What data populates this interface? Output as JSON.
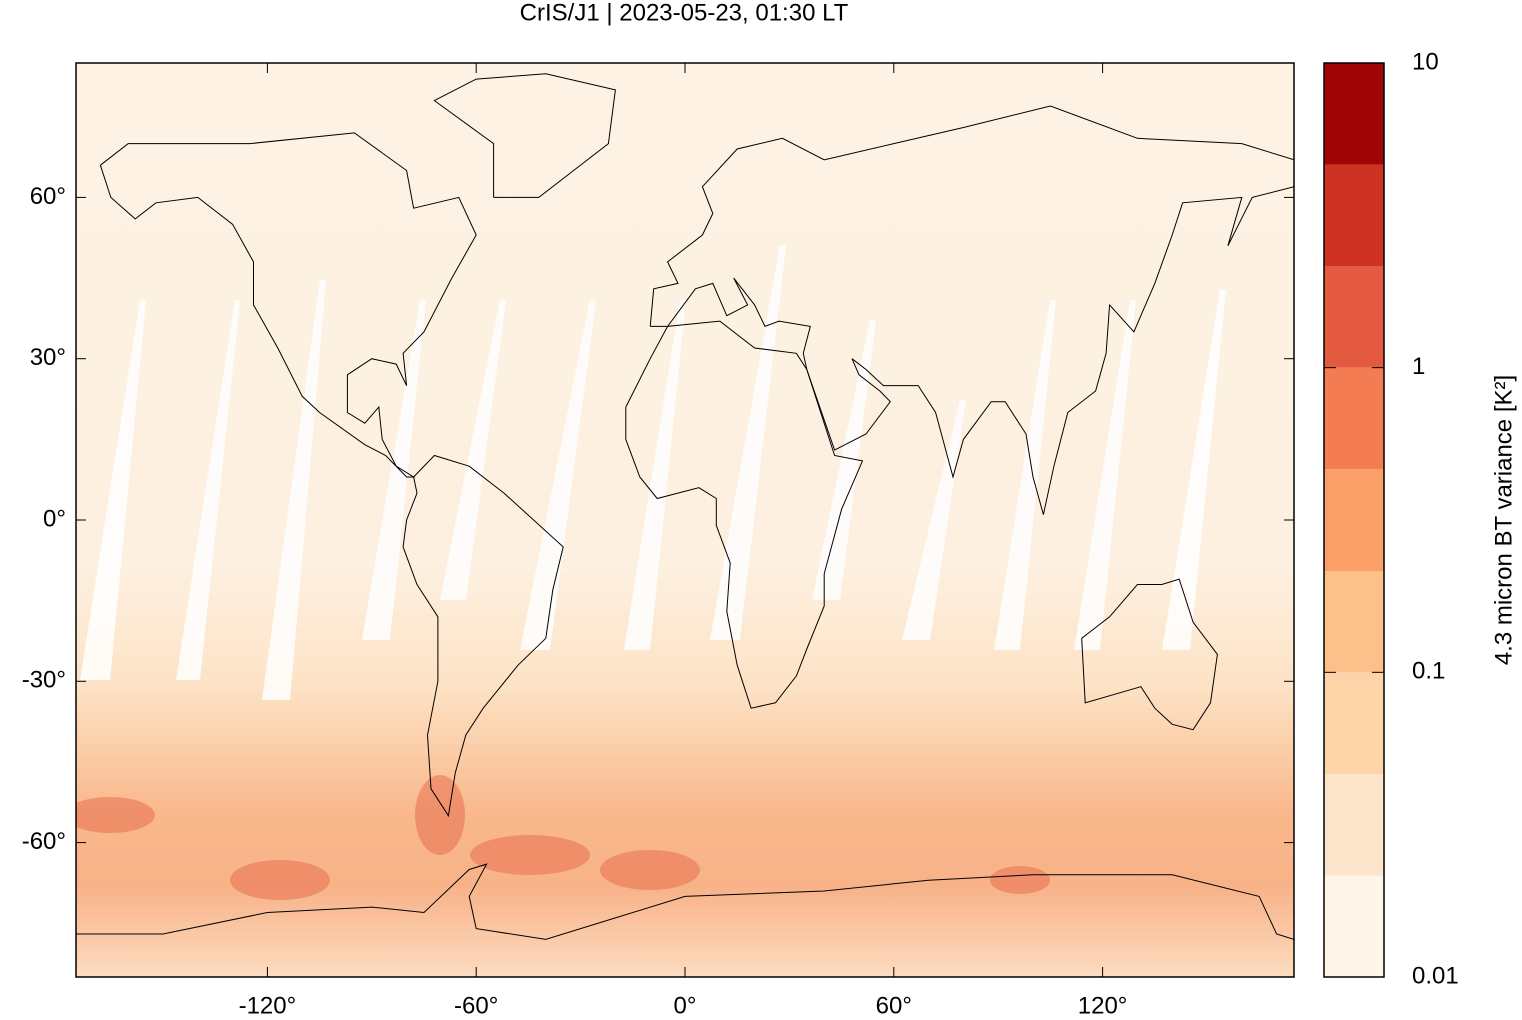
{
  "chart_data": {
    "type": "map",
    "title": "CrIS/J1 | 2023-05-23, 01:30 LT",
    "xlim": [
      -175,
      175
    ],
    "ylim": [
      -85,
      85
    ],
    "xticks": [
      {
        "value": -120,
        "label": "-120°"
      },
      {
        "value": -60,
        "label": "-60°"
      },
      {
        "value": 0,
        "label": "0°"
      },
      {
        "value": 60,
        "label": "60°"
      },
      {
        "value": 120,
        "label": "120°"
      }
    ],
    "yticks": [
      {
        "value": 60,
        "label": "60°"
      },
      {
        "value": 30,
        "label": "30°"
      },
      {
        "value": 0,
        "label": "0°"
      },
      {
        "value": -30,
        "label": "-30°"
      },
      {
        "value": -60,
        "label": "-60°"
      }
    ],
    "colorbar": {
      "label": "4.3 micron BT variance [K²]",
      "log_scale": true,
      "lim": [
        0.01,
        10
      ],
      "ticks": [
        0.01,
        0.1,
        1,
        10
      ],
      "levels": [
        0.01,
        0.0215,
        0.0464,
        0.1,
        0.215,
        0.464,
        1,
        2.15,
        4.64,
        10
      ],
      "colors": [
        "#fef4e8",
        "#fde5cb",
        "#fcd4a8",
        "#fcc08a",
        "#fb9f69",
        "#f47c52",
        "#e45a40",
        "#cd3222",
        "#a10606"
      ]
    }
  }
}
